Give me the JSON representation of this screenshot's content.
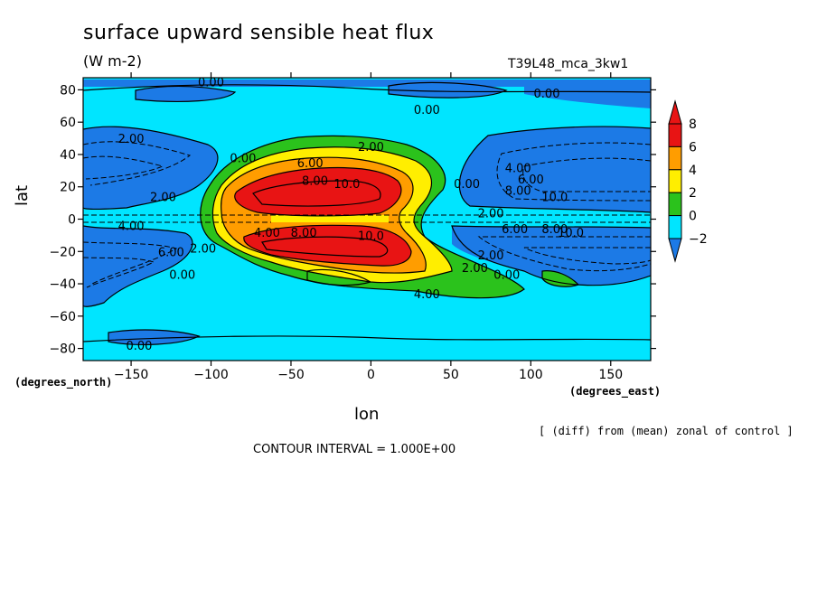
{
  "header": {
    "title": "surface upward sensible heat flux",
    "units": "(W m-2)",
    "run_id": "T39L48_mca_3kw1"
  },
  "footer": {
    "lat_unit": "(degrees_north)",
    "lon_unit": "(degrees_east)",
    "note": "[ (diff) from (mean) zonal of control ]",
    "contour_interval": "CONTOUR INTERVAL = 1.000E+00"
  },
  "chart_data": {
    "type": "heatmap",
    "title": "surface upward sensible heat flux",
    "subtitle": "(W m-2)",
    "xlabel": "lon",
    "ylabel": "lat",
    "xlim": [
      -180,
      175
    ],
    "ylim": [
      -87.5,
      87.5
    ],
    "x_ticks": [
      -150,
      -100,
      -50,
      0,
      50,
      100,
      150
    ],
    "y_ticks": [
      -80,
      -60,
      -40,
      -20,
      0,
      20,
      40,
      60,
      80
    ],
    "colorbar": {
      "levels": [
        -2,
        0,
        2,
        4,
        6,
        8
      ],
      "colors": [
        "#1c7ae6",
        "#00e5ff",
        "#2bc21c",
        "#ffee00",
        "#ff9d00",
        "#e81414"
      ],
      "extend": "both"
    },
    "contour_labels": [
      {
        "text": "0.00",
        "x": -100,
        "y": 85
      },
      {
        "text": "0.00",
        "x": 35,
        "y": 68
      },
      {
        "text": "0.00",
        "x": 110,
        "y": 78
      },
      {
        "text": "2.00",
        "x": -150,
        "y": 50
      },
      {
        "text": "0.00",
        "x": -80,
        "y": 38
      },
      {
        "text": "2.00",
        "x": 0,
        "y": 45
      },
      {
        "text": "6.00",
        "x": -38,
        "y": 35
      },
      {
        "text": "8.00",
        "x": -35,
        "y": 24
      },
      {
        "text": "10.0",
        "x": -15,
        "y": 22
      },
      {
        "text": "0.00",
        "x": 60,
        "y": 22
      },
      {
        "text": "4.00",
        "x": 92,
        "y": 32
      },
      {
        "text": "6.00",
        "x": 100,
        "y": 25
      },
      {
        "text": "8.00",
        "x": 92,
        "y": 18
      },
      {
        "text": "2.00",
        "x": -130,
        "y": 14
      },
      {
        "text": "10.0",
        "x": 115,
        "y": 14
      },
      {
        "text": "2.00",
        "x": 75,
        "y": 4
      },
      {
        "text": "4.00",
        "x": -150,
        "y": -4
      },
      {
        "text": "4.00",
        "x": -65,
        "y": -8
      },
      {
        "text": "8.00",
        "x": -42,
        "y": -8
      },
      {
        "text": "10.0",
        "x": 0,
        "y": -10
      },
      {
        "text": "6.00",
        "x": 90,
        "y": -6
      },
      {
        "text": "8.00",
        "x": 115,
        "y": -6
      },
      {
        "text": "10.0",
        "x": 125,
        "y": -8
      },
      {
        "text": "6.00",
        "x": -125,
        "y": -20
      },
      {
        "text": "2.00",
        "x": -105,
        "y": -18
      },
      {
        "text": "2.00",
        "x": 75,
        "y": -22
      },
      {
        "text": "2.00",
        "x": 65,
        "y": -30
      },
      {
        "text": "0.00",
        "x": 85,
        "y": -34
      },
      {
        "text": "0.00",
        "x": -118,
        "y": -34
      },
      {
        "text": "4.00",
        "x": 35,
        "y": -46
      },
      {
        "text": "0.00",
        "x": -145,
        "y": -78
      }
    ]
  }
}
